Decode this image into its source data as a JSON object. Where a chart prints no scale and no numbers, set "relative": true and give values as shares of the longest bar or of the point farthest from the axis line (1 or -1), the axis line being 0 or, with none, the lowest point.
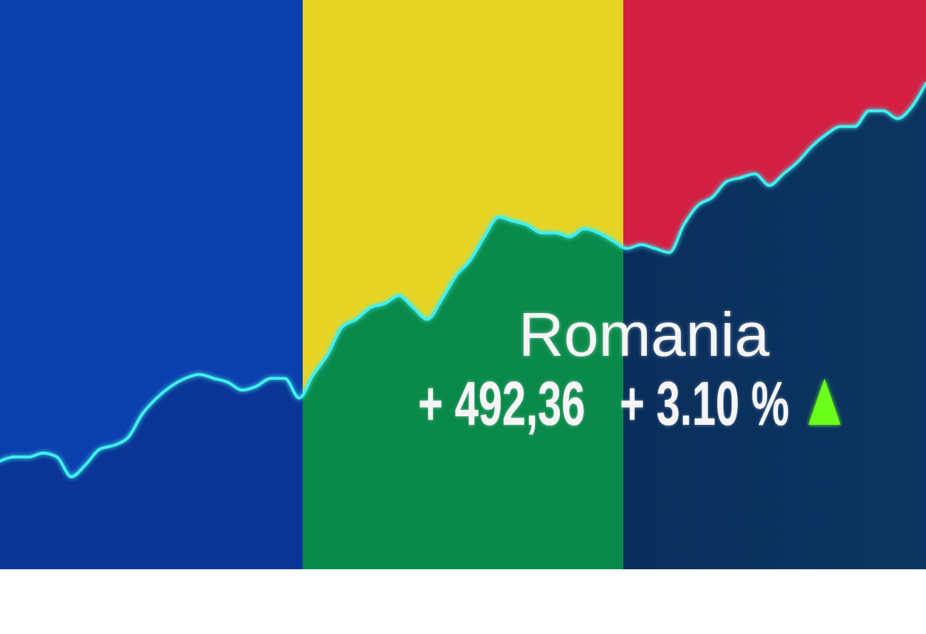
{
  "chart_data": {
    "type": "area",
    "relative": true,
    "title": "Romania",
    "annotations": [
      "+ 492,36",
      "+ 3.10 %"
    ],
    "categories": [
      null,
      null,
      null,
      null,
      null,
      null,
      null,
      null,
      null,
      null,
      null,
      null,
      null,
      null,
      null,
      null,
      null,
      null,
      null,
      null,
      null,
      null,
      null,
      null,
      null,
      null,
      null,
      null,
      null,
      null,
      null,
      null,
      null,
      null,
      null,
      null,
      null,
      null,
      null,
      null,
      null,
      null,
      null,
      null,
      null,
      null,
      null,
      null,
      null,
      null,
      null,
      null,
      null,
      null,
      null,
      null,
      null,
      null,
      null,
      null,
      null,
      null,
      null,
      null,
      null,
      null
    ],
    "color": "#40f0f0",
    "values": [
      0.04,
      0.05,
      0.05,
      0.06,
      0.05,
      0,
      0.03,
      0.07,
      0.08,
      0.1,
      0.16,
      0.2,
      0.23,
      0.25,
      0.26,
      0.25,
      0.24,
      0.22,
      0.23,
      0.25,
      0.25,
      0.2,
      0.26,
      0.31,
      0.38,
      0.4,
      0.43,
      0.44,
      0.46,
      0.43,
      0.4,
      0.45,
      0.51,
      0.55,
      0.61,
      0.66,
      0.65,
      0.64,
      0.62,
      0.62,
      0.61,
      0.63,
      0.62,
      0.6,
      0.58,
      0.59,
      0.58,
      0.57,
      0.64,
      0.69,
      0.71,
      0.75,
      0.76,
      0.77,
      0.74,
      0.77,
      0.8,
      0.84,
      0.87,
      0.89,
      0.89,
      0.93,
      0.93,
      0.91,
      0.94,
      1
    ]
  }
}
